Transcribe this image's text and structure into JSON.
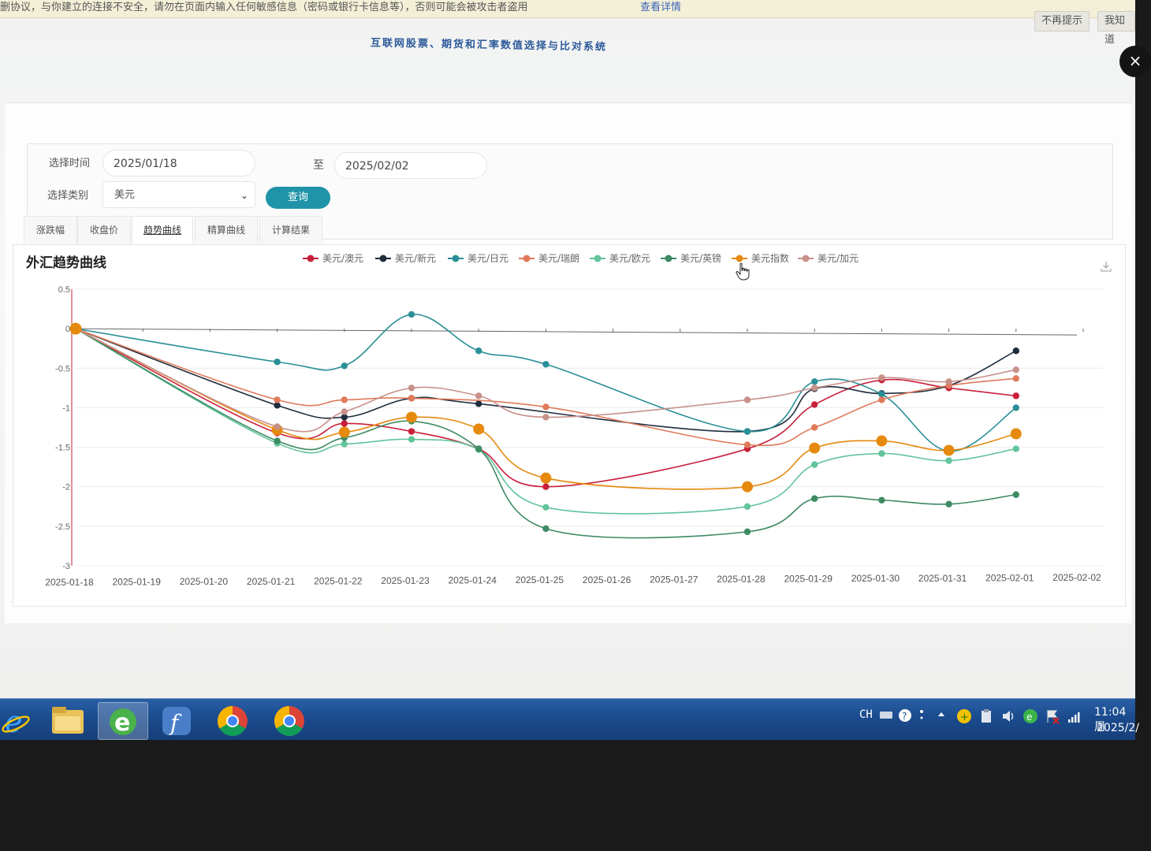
{
  "warning_bar": {
    "text": "删协议，与你建立的连接不安全，请勿在页面内输入任何敏感信息（密码或银行卡信息等），否则可能会被攻击者盗用",
    "link": "查看详情",
    "button_no_prompt": "不再提示",
    "button_fix": "我知道"
  },
  "system_title": "互联网股票、期货和汇率数值选择与比对系统",
  "form": {
    "time_label": "选择时间",
    "start_date": "2025/01/18",
    "to_label": "至",
    "end_date": "2025/02/02",
    "category_label": "选择类别",
    "category_value": "美元",
    "query_button": "查询"
  },
  "tabs": [
    {
      "label": "涨跌幅",
      "active": false
    },
    {
      "label": "收盘价",
      "active": false
    },
    {
      "label": "趋势曲线",
      "active": true
    },
    {
      "label": "精算曲线",
      "active": false
    },
    {
      "label": "计算结果",
      "active": false
    }
  ],
  "chart_data": {
    "type": "line",
    "title": "外汇趋势曲线",
    "xlabel": "",
    "ylabel": "",
    "categories": [
      "2025-01-18",
      "2025-01-19",
      "2025-01-20",
      "2025-01-21",
      "2025-01-22",
      "2025-01-23",
      "2025-01-24",
      "2025-01-25",
      "2025-01-26",
      "2025-01-27",
      "2025-01-28",
      "2025-01-29",
      "2025-01-30",
      "2025-01-31",
      "2025-02-01",
      "2025-02-02"
    ],
    "ylim": [
      -3,
      0.5
    ],
    "yticks": [
      "0.5",
      "0",
      "-0.5",
      "-1",
      "-1.5",
      "-2",
      "-2.5",
      "-3"
    ],
    "legend_position": "top",
    "smooth": true,
    "series": [
      {
        "name": "美元/澳元",
        "color": "#c8203a",
        "points": [
          [
            0,
            0
          ],
          [
            3,
            -1.32
          ],
          [
            4,
            -1.2
          ],
          [
            5,
            -1.3
          ],
          [
            6,
            -1.52
          ],
          [
            7,
            -2.0
          ],
          [
            10,
            -1.52
          ],
          [
            11,
            -0.96
          ],
          [
            12,
            -0.65
          ],
          [
            13,
            -0.75
          ],
          [
            14,
            -0.85
          ]
        ]
      },
      {
        "name": "美元/新元",
        "color": "#1f2d3d",
        "points": [
          [
            0,
            0
          ],
          [
            3,
            -0.97
          ],
          [
            4,
            -1.12
          ],
          [
            5,
            -0.88
          ],
          [
            6,
            -0.95
          ],
          [
            10,
            -1.3
          ],
          [
            11,
            -0.76
          ],
          [
            12,
            -0.82
          ],
          [
            13,
            -0.72
          ],
          [
            14,
            -0.28
          ]
        ]
      },
      {
        "name": "美元/日元",
        "color": "#2a8f96",
        "points": [
          [
            0,
            0
          ],
          [
            3,
            -0.42
          ],
          [
            4,
            -0.47
          ],
          [
            5,
            0.18
          ],
          [
            6,
            -0.28
          ],
          [
            7,
            -0.45
          ],
          [
            10,
            -1.3
          ],
          [
            11,
            -0.67
          ],
          [
            12,
            -0.83
          ],
          [
            13,
            -1.55
          ],
          [
            14,
            -1.0
          ]
        ]
      },
      {
        "name": "美元/瑞朗",
        "color": "#e07a5a",
        "points": [
          [
            0,
            0
          ],
          [
            3,
            -0.9
          ],
          [
            4,
            -0.9
          ],
          [
            5,
            -0.88
          ],
          [
            7,
            -0.99
          ],
          [
            10,
            -1.47
          ],
          [
            11,
            -1.25
          ],
          [
            12,
            -0.9
          ],
          [
            13,
            -0.72
          ],
          [
            14,
            -0.63
          ]
        ]
      },
      {
        "name": "美元/欧元",
        "color": "#62c49a",
        "points": [
          [
            0,
            0
          ],
          [
            3,
            -1.45
          ],
          [
            4,
            -1.46
          ],
          [
            5,
            -1.4
          ],
          [
            6,
            -1.53
          ],
          [
            7,
            -2.26
          ],
          [
            10,
            -2.25
          ],
          [
            11,
            -1.72
          ],
          [
            12,
            -1.58
          ],
          [
            13,
            -1.67
          ],
          [
            14,
            -1.52
          ]
        ]
      },
      {
        "name": "美元/英镑",
        "color": "#3d8a63",
        "points": [
          [
            0,
            0
          ],
          [
            3,
            -1.42
          ],
          [
            4,
            -1.38
          ],
          [
            5,
            -1.17
          ],
          [
            6,
            -1.52
          ],
          [
            7,
            -2.53
          ],
          [
            10,
            -2.57
          ],
          [
            11,
            -2.15
          ],
          [
            12,
            -2.17
          ],
          [
            13,
            -2.22
          ],
          [
            14,
            -2.1
          ]
        ]
      },
      {
        "name": "美元指数",
        "color": "#e5890f",
        "points": [
          [
            0,
            0
          ],
          [
            3,
            -1.28
          ],
          [
            4,
            -1.31
          ],
          [
            5,
            -1.12
          ],
          [
            6,
            -1.27
          ],
          [
            7,
            -1.89
          ],
          [
            10,
            -2.0
          ],
          [
            11,
            -1.51
          ],
          [
            12,
            -1.42
          ],
          [
            13,
            -1.54
          ],
          [
            14,
            -1.33
          ]
        ]
      },
      {
        "name": "美元/加元",
        "color": "#c7918a",
        "points": [
          [
            0,
            0
          ],
          [
            3,
            -1.24
          ],
          [
            4,
            -1.05
          ],
          [
            5,
            -0.75
          ],
          [
            6,
            -0.85
          ],
          [
            7,
            -1.12
          ],
          [
            10,
            -0.9
          ],
          [
            11,
            -0.75
          ],
          [
            12,
            -0.62
          ],
          [
            13,
            -0.67
          ],
          [
            14,
            -0.52
          ]
        ]
      }
    ]
  },
  "icons": {
    "download": "download-icon",
    "cursor": "hand-pointer-icon",
    "close": "close-icon"
  },
  "taskbar": {
    "apps": [
      "ie-icon",
      "file-explorer-icon",
      "browser-e-icon",
      "flash-icon",
      "chrome-icon",
      "chrome-icon"
    ],
    "ime": "CH",
    "time": "11:04 周",
    "date": "2025/2/"
  }
}
